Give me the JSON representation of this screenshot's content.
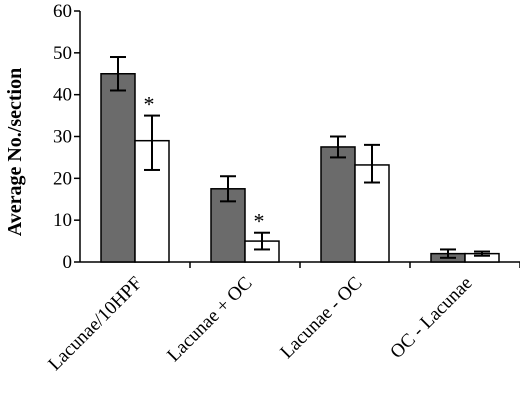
{
  "chart_data": {
    "type": "bar",
    "title": "",
    "xlabel": "",
    "ylabel": "Average No./section",
    "ylim": [
      0,
      60
    ],
    "yticks": [
      0,
      10,
      20,
      30,
      40,
      50,
      60
    ],
    "grid": false,
    "categories": [
      "Lacunae/10HPF",
      "Lacunae + OC",
      "Lacunae - OC",
      "OC - Lacunae"
    ],
    "series": [
      {
        "color": "#6b6b6b",
        "values": [
          45,
          17.5,
          27.5,
          2
        ],
        "error_low": [
          41,
          14.5,
          25,
          1
        ],
        "error_high": [
          49,
          20.5,
          30,
          3
        ]
      },
      {
        "color": "#ffffff",
        "values": [
          29,
          5,
          23.2,
          2
        ],
        "error_low": [
          22,
          3,
          19,
          1.5
        ],
        "error_high": [
          35,
          7,
          28,
          2.5
        ]
      }
    ],
    "annotations": [
      {
        "text": "*",
        "category": "Lacunae/10HPF",
        "series_index": 1
      },
      {
        "text": "*",
        "category": "Lacunae + OC",
        "series_index": 1
      }
    ]
  }
}
